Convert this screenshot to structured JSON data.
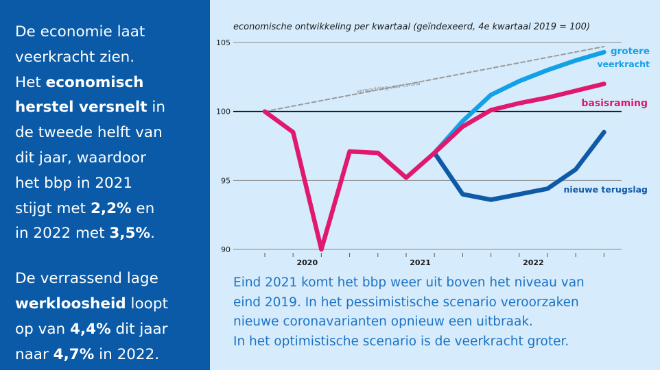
{
  "left": {
    "para1": [
      {
        "text": "De economie laat",
        "bold": false
      },
      {
        "text": "veerkracht zien.",
        "bold": false
      },
      {
        "text": "Het ",
        "bold": false
      },
      {
        "text": "economisch",
        "bold": true
      },
      {
        "text": "herstel versnelt",
        "bold": true
      },
      {
        "text": " in",
        "bold": false
      },
      {
        "text": "de tweede helft van",
        "bold": false
      },
      {
        "text": "dit jaar, waardoor",
        "bold": false
      },
      {
        "text": "het bbp in 2021",
        "bold": false
      },
      {
        "text": "stijgt  met ",
        "bold": false
      },
      {
        "text": "2,2%",
        "bold": true
      },
      {
        "text": " en",
        "bold": false
      },
      {
        "text": "in 2022 met ",
        "bold": false
      },
      {
        "text": "3,5%",
        "bold": true
      },
      {
        "text": ".",
        "bold": false
      }
    ],
    "para2": [
      {
        "text": "De verrassend lage",
        "bold": false
      },
      {
        "text": "werkloosheid",
        "bold": true
      },
      {
        "text": " loopt",
        "bold": false
      },
      {
        "text": "op van ",
        "bold": false
      },
      {
        "text": "4,4%",
        "bold": true
      },
      {
        "text": " dit jaar",
        "bold": false
      },
      {
        "text": "naar ",
        "bold": false
      },
      {
        "text": "4,7%",
        "bold": true
      },
      {
        "text": " in 2022.",
        "bold": false
      }
    ]
  },
  "chart_data": {
    "type": "line",
    "title": "economische ontwikkeling per kwartaal (geïndexeerd, 4e kwartaal 2019 = 100)",
    "xlabel": "",
    "ylabel": "",
    "ylim": [
      90,
      105
    ],
    "yticks": [
      90,
      95,
      100,
      105
    ],
    "grid": "horizontal",
    "x": [
      "2019K4",
      "2020K1",
      "2020K2",
      "2020K3",
      "2020K4",
      "2021K1",
      "2021K2",
      "2021K3",
      "2021K4",
      "2022K1",
      "2022K2",
      "2022K3",
      "2022K4"
    ],
    "x_tick_labels": [
      {
        "label": "2020",
        "position": 2
      },
      {
        "label": "2021",
        "position": 6
      },
      {
        "label": "2022",
        "position": 10
      }
    ],
    "series": [
      {
        "name": "verwachting voor corona",
        "style": "dashed",
        "color": "#9a9a9a",
        "points": [
          [
            0,
            100.0
          ],
          [
            12,
            104.7
          ]
        ]
      },
      {
        "name": "grotere veerkracht",
        "color": "#12a1e6",
        "points": [
          [
            6,
            97.0
          ],
          [
            7,
            99.3
          ],
          [
            8,
            101.2
          ],
          [
            9,
            102.2
          ],
          [
            10,
            103.0
          ],
          [
            11,
            103.7
          ],
          [
            12,
            104.3
          ]
        ]
      },
      {
        "name": "nieuwe terugslag",
        "color": "#0f5aa6",
        "points": [
          [
            6,
            97.0
          ],
          [
            7,
            94.0
          ],
          [
            8,
            93.6
          ],
          [
            9,
            94.0
          ],
          [
            10,
            94.4
          ],
          [
            11,
            95.8
          ],
          [
            12,
            98.5
          ]
        ]
      },
      {
        "name": "basisraming",
        "color": "#e0196f",
        "points": [
          [
            0,
            100.0
          ],
          [
            1,
            98.5
          ],
          [
            2,
            90.0
          ],
          [
            3,
            97.1
          ],
          [
            4,
            97.0
          ],
          [
            5,
            95.2
          ],
          [
            6,
            97.0
          ],
          [
            7,
            98.9
          ],
          [
            8,
            100.1
          ],
          [
            9,
            100.6
          ],
          [
            10,
            101.0
          ],
          [
            11,
            101.5
          ],
          [
            12,
            102.0
          ]
        ]
      }
    ],
    "labels": {
      "grotere": "grotere",
      "veerkracht": "veerkracht",
      "basisraming": "basisraming",
      "terugslag": "nieuwe terugslag",
      "dashed": "verwachting voor corona"
    }
  },
  "caption": [
    "Eind 2021 komt het bbp weer uit boven het niveau van",
    "eind 2019. In het pessimistische scenario veroorzaken",
    "nieuwe coronavarianten opnieuw een uitbraak.",
    "In het optimistische scenario is de veerkracht groter."
  ]
}
